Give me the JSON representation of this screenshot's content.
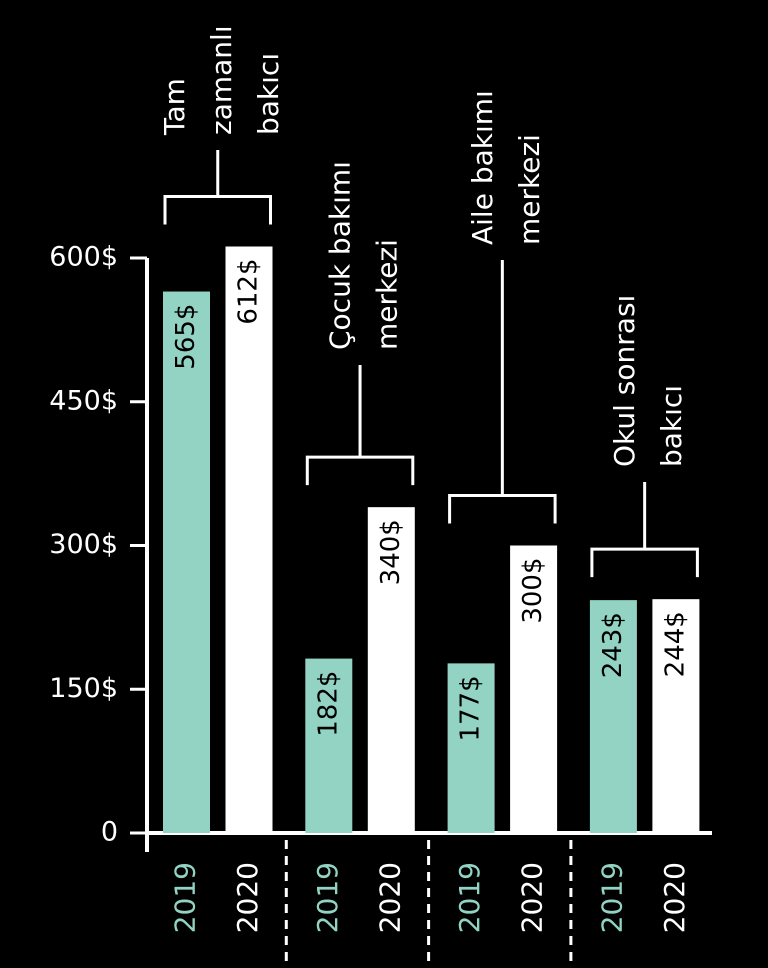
{
  "chart_data": {
    "type": "bar",
    "categories": [
      [
        "Tam",
        "zamanlı",
        "bakıcı"
      ],
      [
        "Çocuk bakımı",
        "merkezi"
      ],
      [
        "Aile bakımı",
        "merkezi"
      ],
      [
        "Okul sonrası",
        "bakıcı"
      ]
    ],
    "series": [
      {
        "name": "2019",
        "color": "#93d3c3",
        "values": [
          565,
          182,
          177,
          243
        ],
        "value_labels": [
          "565$",
          "182$",
          "177$",
          "243$"
        ]
      },
      {
        "name": "2020",
        "color": "#ffffff",
        "values": [
          612,
          340,
          300,
          244
        ],
        "value_labels": [
          "612$",
          "340$",
          "300$",
          "244$"
        ]
      }
    ],
    "ylim": [
      0,
      600
    ],
    "yticks": [
      0,
      {
        "value": 150,
        "label": "150$"
      },
      {
        "value": 300,
        "label": "300$"
      },
      {
        "value": 450,
        "label": "450$"
      },
      {
        "value": 600,
        "label": "600$"
      }
    ]
  }
}
